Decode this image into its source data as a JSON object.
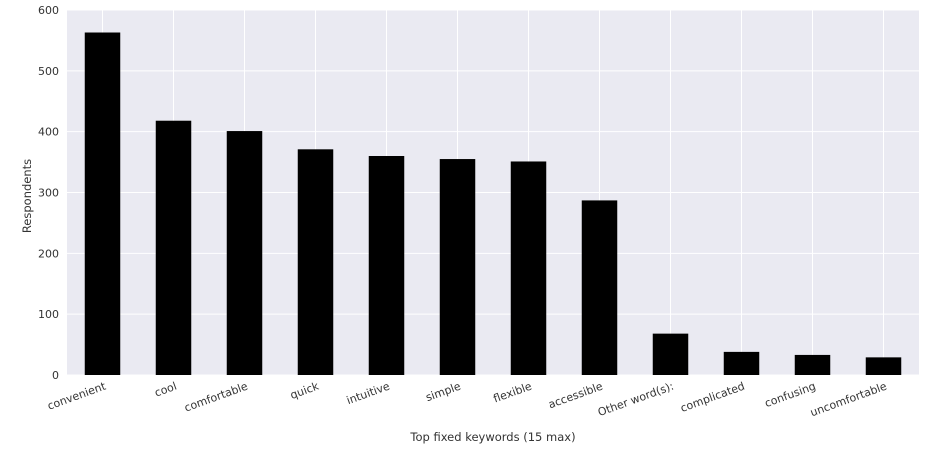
{
  "chart_data": {
    "type": "bar",
    "title": "",
    "xlabel": "Top fixed keywords (15 max)",
    "ylabel": "Respondents",
    "categories": [
      "convenient",
      "cool",
      "comfortable",
      "quick",
      "intuitive",
      "simple",
      "flexible",
      "accessible",
      "Other word(s):",
      "complicated",
      "confusing",
      "uncomfortable"
    ],
    "values": [
      563,
      418,
      401,
      371,
      360,
      355,
      351,
      287,
      68,
      38,
      33,
      29
    ],
    "ylim": [
      0,
      600
    ],
    "yticks": [
      "0",
      "100",
      "200",
      "300",
      "400",
      "500",
      "600"
    ],
    "grid": true,
    "background_color": "#eaeaf2",
    "grid_color": "#ffffff",
    "bar_color": "#000000"
  }
}
